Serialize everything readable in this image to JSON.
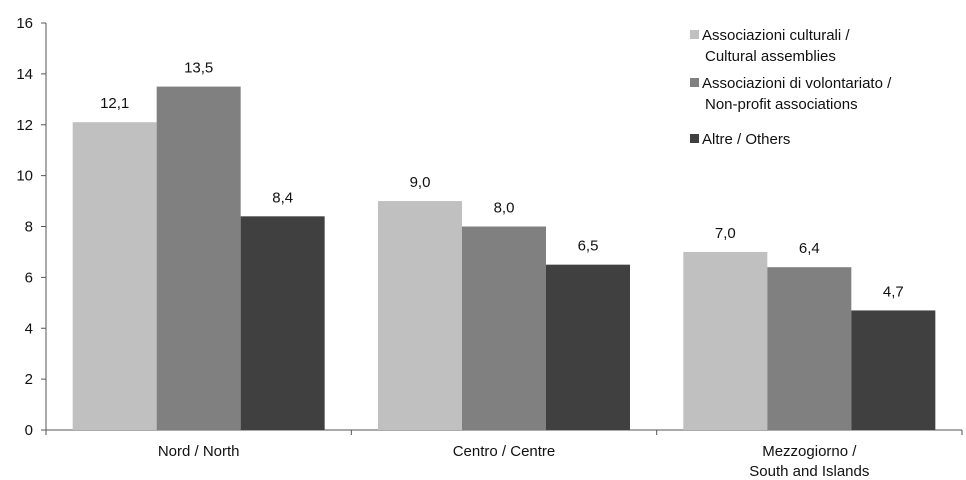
{
  "chart_data": {
    "type": "bar",
    "categories": [
      [
        "Nord / North"
      ],
      [
        "Centro / Centre"
      ],
      [
        "Mezzogiorno /",
        "South and Islands"
      ]
    ],
    "series": [
      {
        "name": [
          "Associazioni culturali /",
          "Cultural assemblies"
        ],
        "color": "#c0c0c0",
        "values": [
          12.1,
          9.0,
          7.0
        ],
        "labels": [
          "12,1",
          "9,0",
          "7,0"
        ]
      },
      {
        "name": [
          "Associazioni di volontariato /",
          "Non-profit associations"
        ],
        "color": "#808080",
        "values": [
          13.5,
          8.0,
          6.4
        ],
        "labels": [
          "13,5",
          "8,0",
          "6,4"
        ]
      },
      {
        "name": [
          "Altre / Others"
        ],
        "color": "#404040",
        "values": [
          8.4,
          6.5,
          4.7
        ],
        "labels": [
          "8,4",
          "6,5",
          "4,7"
        ]
      }
    ],
    "ylim": [
      0,
      16
    ],
    "yticks": [
      0,
      2,
      4,
      6,
      8,
      10,
      12,
      14,
      16
    ],
    "grid": false,
    "legend_position": "top-right",
    "title": "",
    "xlabel": "",
    "ylabel": ""
  }
}
